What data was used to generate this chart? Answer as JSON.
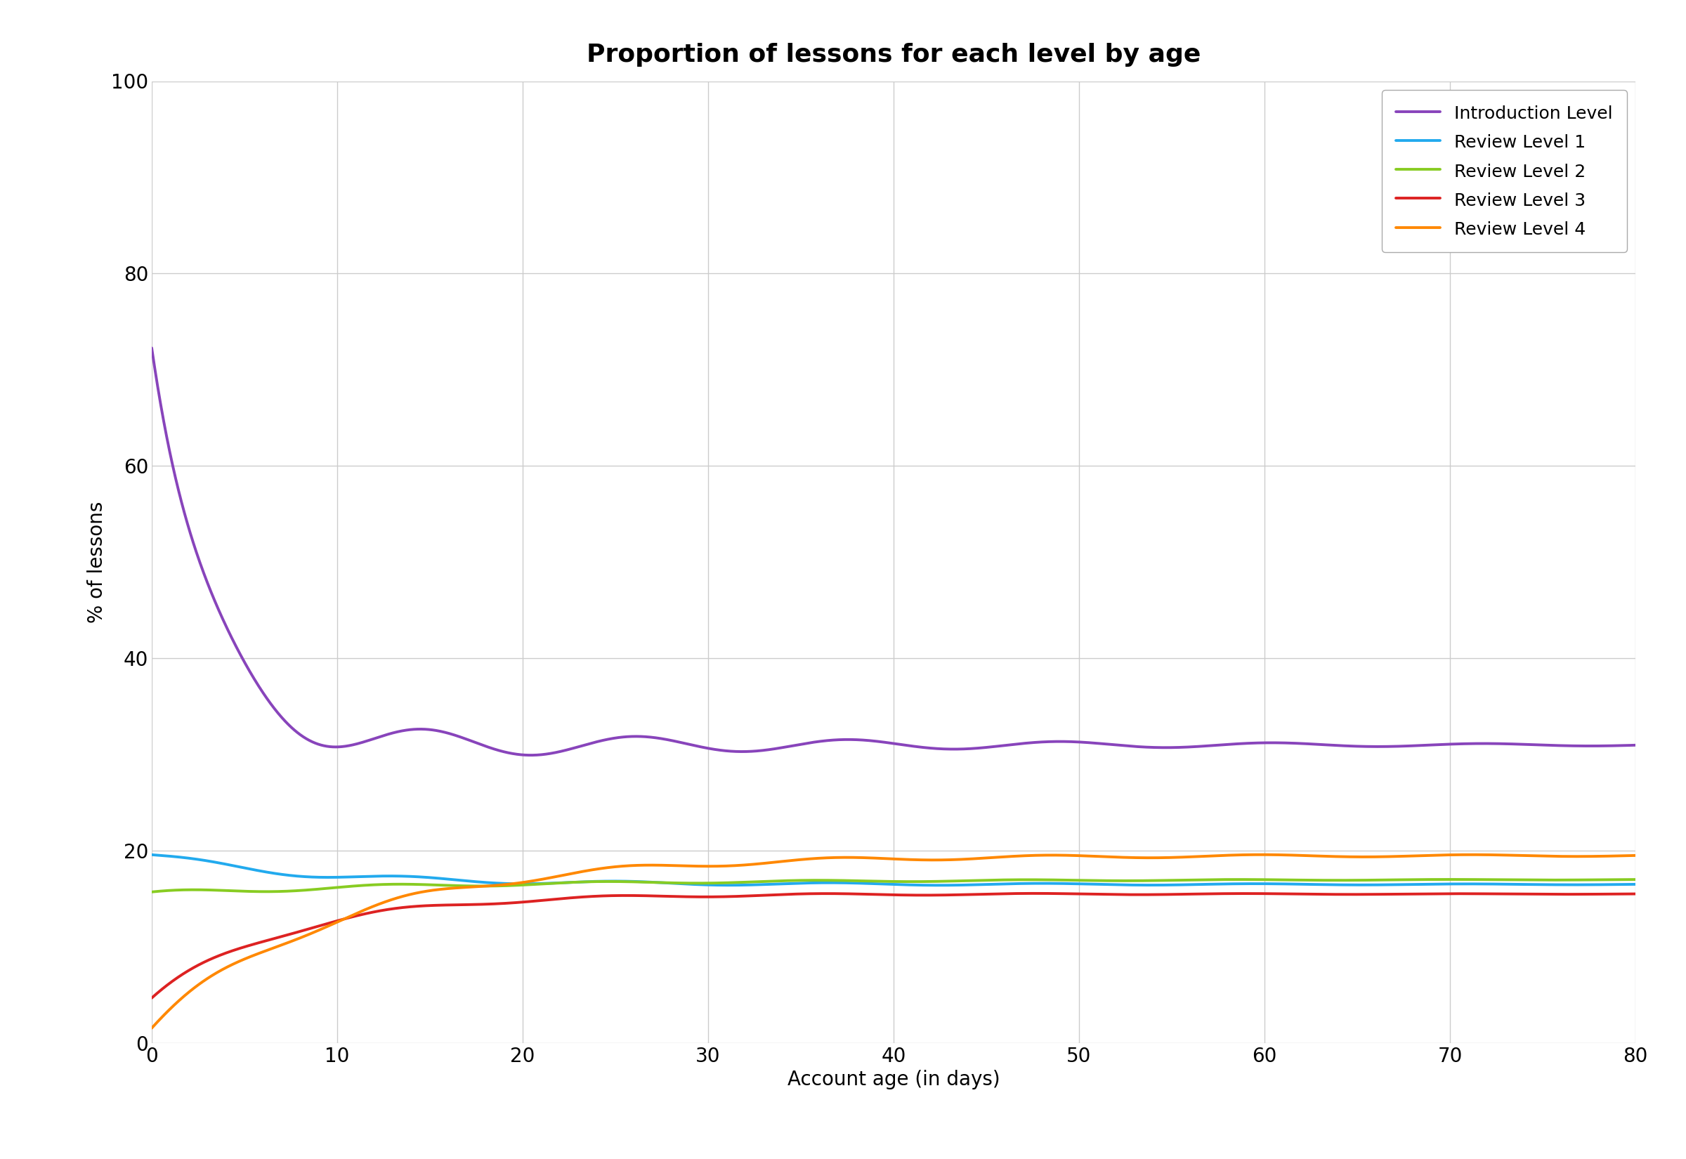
{
  "title": "Proportion of lessons for each level by age",
  "xlabel": "Account age (in days)",
  "ylabel": "% of lessons",
  "xlim": [
    0,
    80
  ],
  "ylim": [
    0,
    100
  ],
  "xticks": [
    0,
    10,
    20,
    30,
    40,
    50,
    60,
    70,
    80
  ],
  "yticks": [
    0,
    20,
    40,
    60,
    80,
    100
  ],
  "series": [
    {
      "label": "Introduction Level",
      "color": "#8844bb"
    },
    {
      "label": "Review Level 1",
      "color": "#22aaee"
    },
    {
      "label": "Review Level 2",
      "color": "#88cc22"
    },
    {
      "label": "Review Level 3",
      "color": "#dd2222"
    },
    {
      "label": "Review Level 4",
      "color": "#ff8800"
    }
  ],
  "background_color": "#ffffff",
  "grid_color": "#cccccc",
  "title_fontsize": 26,
  "label_fontsize": 20,
  "tick_fontsize": 20,
  "legend_fontsize": 18,
  "line_width": 2.8
}
